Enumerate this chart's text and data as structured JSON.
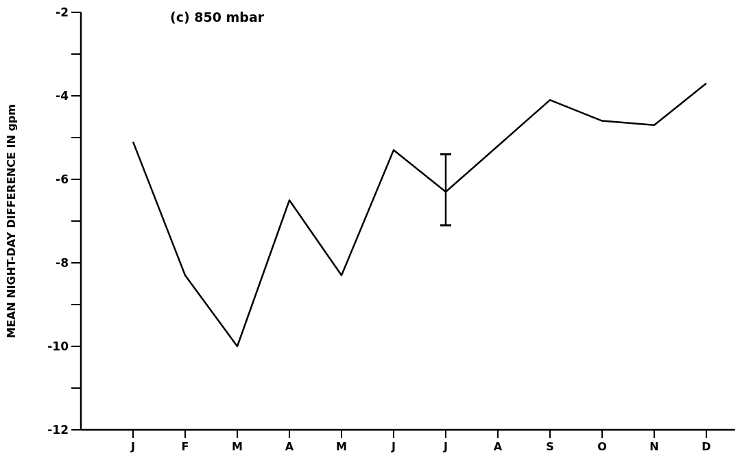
{
  "chart_data": {
    "type": "line",
    "title": "(c) 850 mbar",
    "ylabel": "MEAN NIGHT-DAY DIFFERENCE IN gpm",
    "categories": [
      "J",
      "F",
      "M",
      "A",
      "M",
      "J",
      "J",
      "A",
      "S",
      "O",
      "N",
      "D"
    ],
    "series": [
      {
        "color": "#000000",
        "values": [
          -5.1,
          -8.3,
          -10.0,
          -6.5,
          -8.3,
          -5.3,
          -6.3,
          -5.2,
          -4.1,
          -4.6,
          -4.7,
          -3.7
        ],
        "errors": [
          null,
          null,
          null,
          null,
          null,
          null,
          [
            -7.1,
            -5.4
          ],
          null,
          null,
          null,
          null,
          null
        ]
      }
    ],
    "ylim": [
      -12,
      -2
    ],
    "yticks": [
      -12,
      {
        "value": -11,
        "label": null
      },
      -10,
      {
        "value": -9,
        "label": null
      },
      -8,
      {
        "value": -7,
        "label": null
      },
      -6,
      {
        "value": -5,
        "label": null
      },
      -4,
      {
        "value": -3,
        "label": null
      },
      -2
    ],
    "grid": false,
    "marker": "none",
    "line_style": "solid"
  }
}
